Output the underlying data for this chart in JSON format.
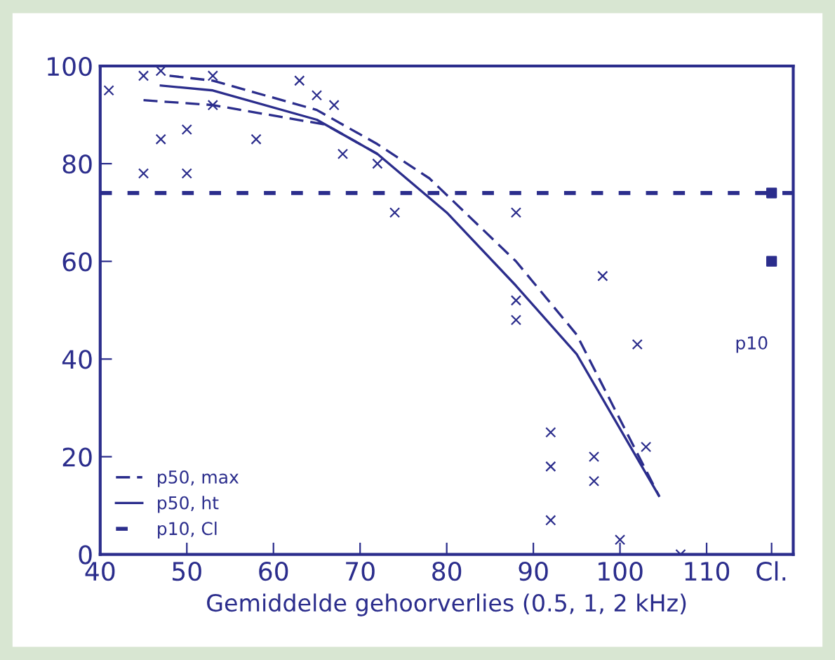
{
  "chart_data": {
    "type": "line",
    "xlabel": "Gemiddelde gehoorverlies (0.5, 1, 2 kHz)",
    "xlim": [
      40,
      120
    ],
    "ylim": [
      0,
      100
    ],
    "xticks": [
      40,
      50,
      60,
      70,
      80,
      90,
      100,
      110,
      {
        "value": 117.5,
        "label": "Cl."
      }
    ],
    "yticks": [
      0,
      20,
      40,
      60,
      80,
      100
    ],
    "grid": false,
    "legend": "bottom left",
    "series": [
      {
        "name": "p50, max",
        "line_style": "dashed",
        "color": "#2b2d8c",
        "x": [
          48,
          53,
          65,
          72,
          78,
          88,
          95,
          104.5
        ],
        "values": [
          98,
          97,
          91,
          84,
          77,
          60,
          45,
          12
        ]
      },
      {
        "name": "p50, ht",
        "line_style": "solid",
        "color": "#2b2d8c",
        "x": [
          47,
          53,
          65,
          72,
          80,
          88,
          95,
          104.5
        ],
        "values": [
          96,
          95,
          89,
          82,
          70,
          55,
          41,
          12
        ]
      },
      {
        "line_style": "dashed",
        "color": "#2b2d8c",
        "x": [
          45,
          53,
          66,
          72
        ],
        "values": [
          93,
          92,
          88,
          82
        ]
      },
      {
        "type": "scatter",
        "marker": "cross",
        "color": "#2b2d8c",
        "x": [
          41,
          45,
          47,
          47,
          45,
          50,
          50,
          53,
          53,
          58,
          63,
          65,
          67,
          68,
          72,
          74,
          88,
          88,
          88,
          98,
          102,
          92,
          92,
          97,
          97,
          92,
          100,
          103,
          107
        ],
        "values": [
          95,
          98,
          99,
          85,
          78,
          78,
          87,
          98,
          92,
          85,
          97,
          94,
          92,
          82,
          80,
          70,
          70,
          52,
          48,
          57,
          43,
          25,
          18,
          20,
          15,
          7,
          3,
          22,
          0
        ]
      },
      {
        "type": "scatter",
        "marker": "square",
        "color": "#2b2d8c",
        "x": [
          117.5,
          117.5
        ],
        "values": [
          74,
          60
        ]
      }
    ],
    "ref_lines": [
      {
        "axis": "y",
        "value": 74,
        "label": "p10, Cl",
        "line_style": "dotted",
        "color": "#2b2d8c"
      }
    ],
    "annotations": [
      "p10"
    ]
  }
}
